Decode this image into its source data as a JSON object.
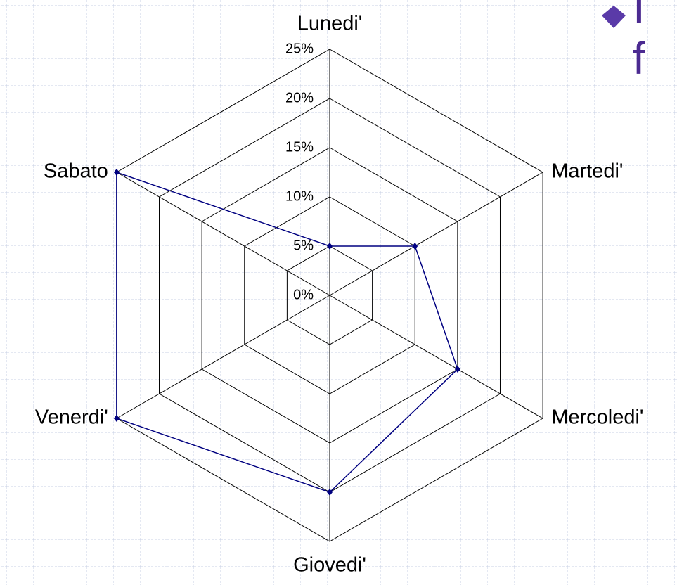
{
  "chart_data": {
    "type": "radar",
    "categories": [
      "Lunedi'",
      "Martedi'",
      "Mercoledi'",
      "Giovedi'",
      "Venerdi'",
      "Sabato"
    ],
    "series": [
      {
        "color": "#000080",
        "values": [
          5,
          10,
          15,
          20,
          25,
          25
        ]
      }
    ],
    "ylim": [
      0,
      25
    ],
    "yticks": [
      {
        "value": 0,
        "label": "0%"
      },
      {
        "value": 5,
        "label": "5%"
      },
      {
        "value": 10,
        "label": "10%"
      },
      {
        "value": 15,
        "label": "15%"
      },
      {
        "value": 20,
        "label": "20%"
      },
      {
        "value": 25,
        "label": "25%"
      }
    ],
    "grid": true
  },
  "slide_text": [
    "I",
    "f"
  ]
}
